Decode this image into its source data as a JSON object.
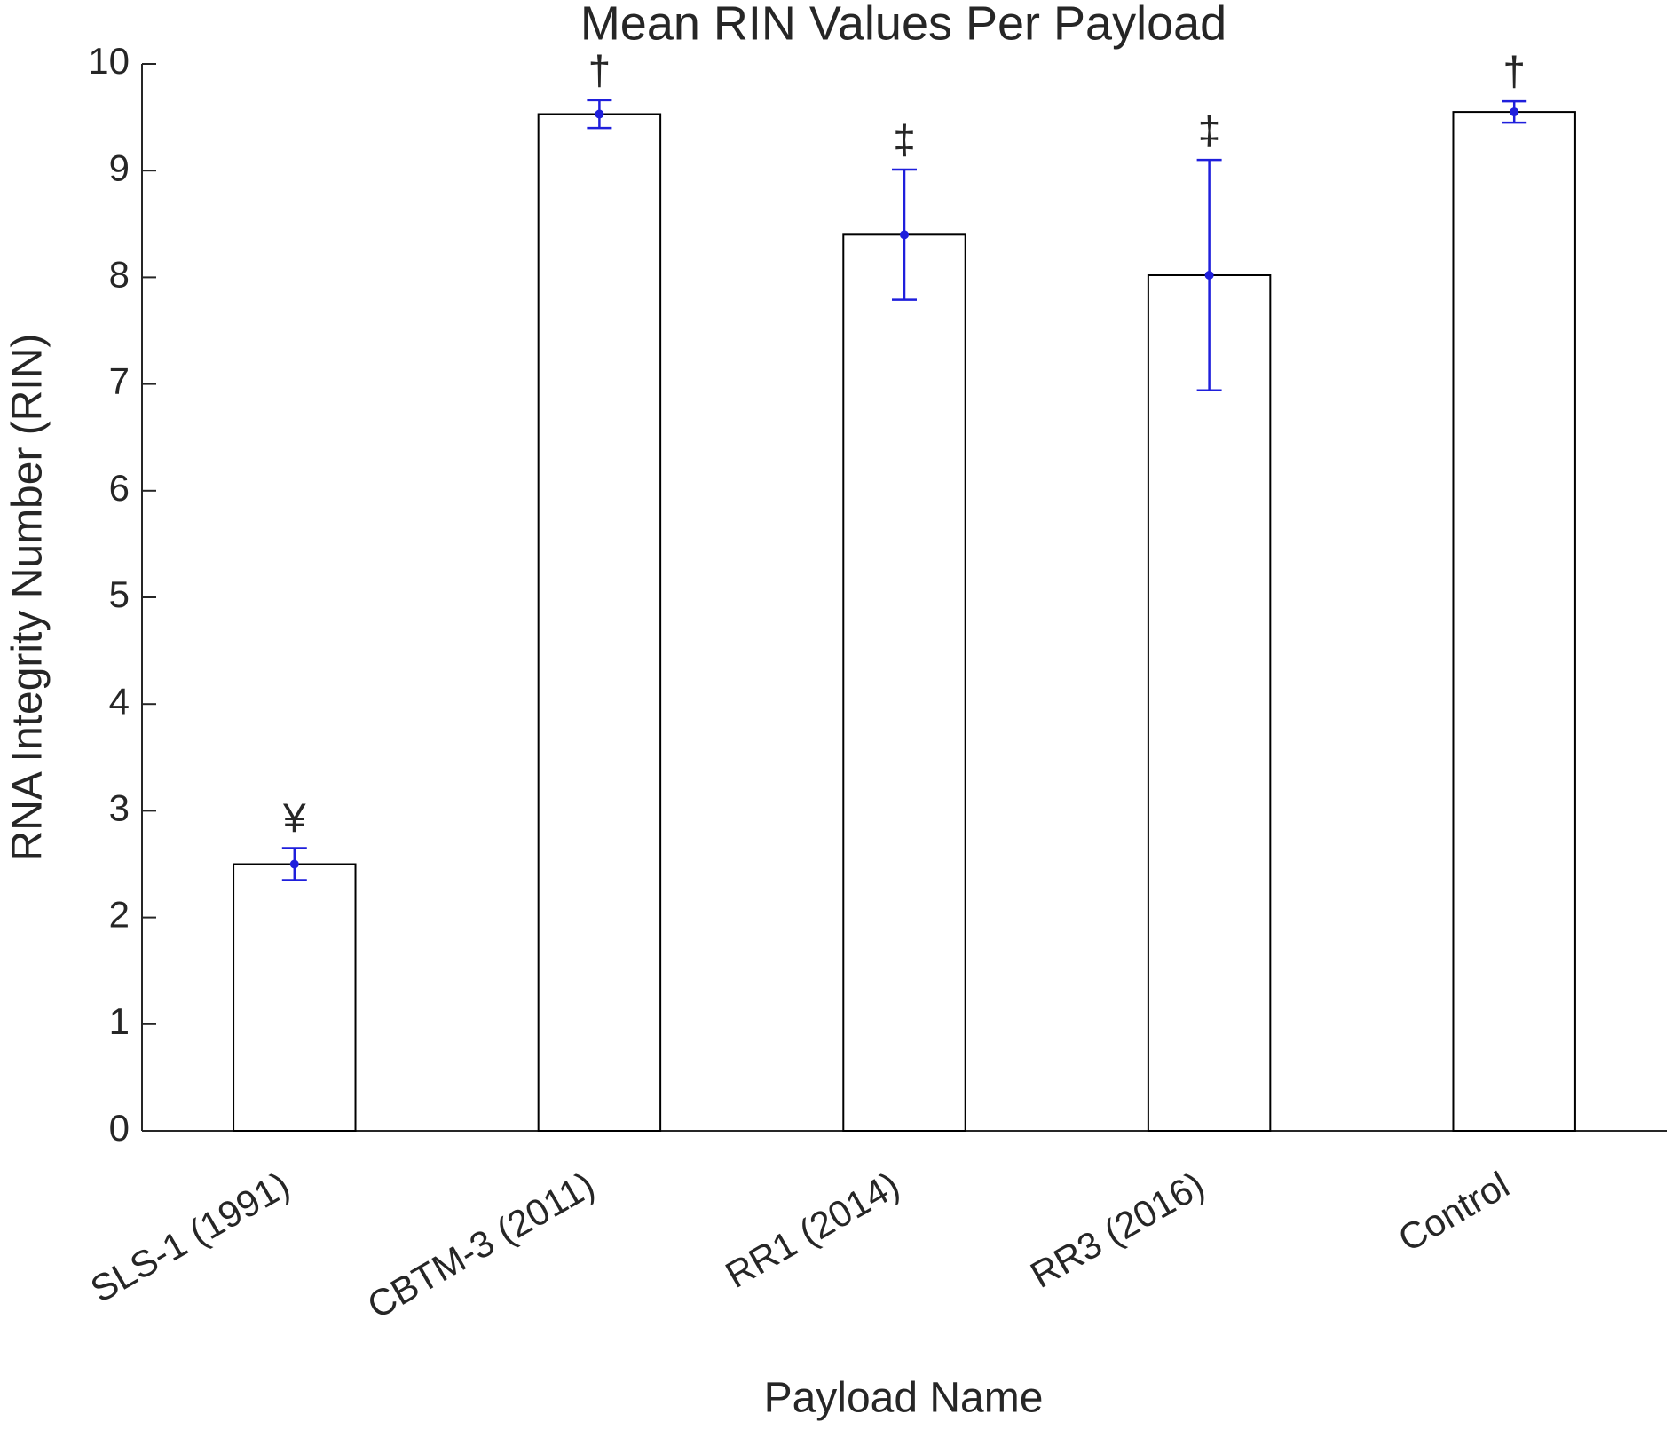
{
  "chart_data": {
    "type": "bar",
    "title": "Mean RIN Values Per Payload",
    "x_label": "Payload Name",
    "y_label": "RNA Integrity Number (RIN)",
    "categories": [
      "SLS-1 (1991)",
      "CBTM-3 (2011)",
      "RR1 (2014)",
      "RR3 (2016)",
      "Control"
    ],
    "values": [
      2.5,
      9.53,
      8.4,
      8.02,
      9.55
    ],
    "errors": [
      0.15,
      0.13,
      0.61,
      1.08,
      0.1
    ],
    "annotations": [
      "¥",
      "†",
      "‡",
      "‡",
      "†"
    ],
    "color": "#ffffff",
    "edge_color": "#000000",
    "error_color": "#1f1fdc",
    "ylim": [
      0,
      10
    ],
    "yticks": [
      0,
      1,
      2,
      3,
      4,
      5,
      6,
      7,
      8,
      9,
      10
    ]
  }
}
